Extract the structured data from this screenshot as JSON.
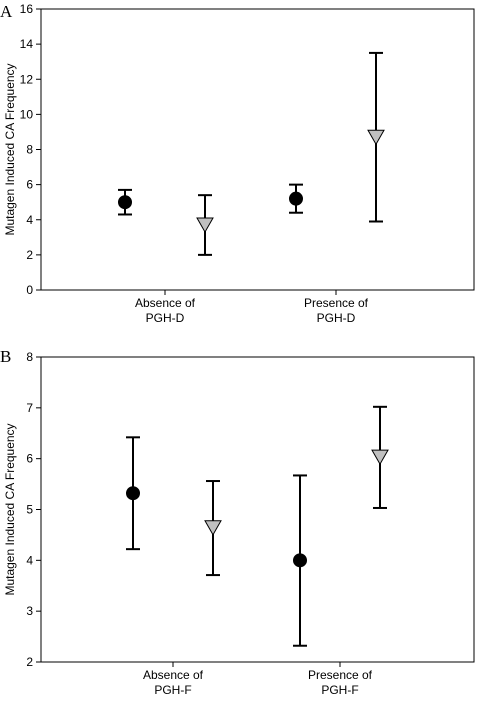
{
  "chart_data": [
    {
      "type": "scatter",
      "panel": "A",
      "ylabel": "Mutagen Induced CA Frequency",
      "ylim": [
        0,
        16
      ],
      "yticks": [
        "0",
        "2",
        "4",
        "6",
        "8",
        "10",
        "12",
        "14",
        "16"
      ],
      "categories": [
        {
          "line1": "Absence of",
          "line2": "PGH-D"
        },
        {
          "line1": "Presence of",
          "line2": "PGH-D"
        }
      ],
      "grid": false,
      "series": [
        {
          "marker": "circle",
          "color": "#000000",
          "points": [
            {
              "category": 0,
              "y": 5.0,
              "lower": 4.3,
              "upper": 5.7
            },
            {
              "category": 1,
              "y": 5.2,
              "lower": 4.4,
              "upper": 6.0
            }
          ]
        },
        {
          "marker": "triangle-down",
          "color": "#c0c0c0",
          "points": [
            {
              "category": 0,
              "y": 3.7,
              "lower": 2.0,
              "upper": 5.4
            },
            {
              "category": 1,
              "y": 8.7,
              "lower": 3.9,
              "upper": 13.5
            }
          ]
        }
      ]
    },
    {
      "type": "scatter",
      "panel": "B",
      "ylabel": "Mutagen Induced CA Frequency",
      "ylim": [
        2,
        8
      ],
      "yticks": [
        "2",
        "3",
        "4",
        "5",
        "6",
        "7",
        "8"
      ],
      "categories": [
        {
          "line1": "Absence of",
          "line2": "PGH-F"
        },
        {
          "line1": "Presence of",
          "line2": "PGH-F"
        }
      ],
      "grid": false,
      "series": [
        {
          "marker": "circle",
          "color": "#000000",
          "points": [
            {
              "category": 0,
              "y": 5.32,
              "lower": 4.22,
              "upper": 6.42
            },
            {
              "category": 1,
              "y": 4.0,
              "lower": 2.32,
              "upper": 5.67
            }
          ]
        },
        {
          "marker": "triangle-down",
          "color": "#c0c0c0",
          "points": [
            {
              "category": 0,
              "y": 4.64,
              "lower": 3.71,
              "upper": 5.56
            },
            {
              "category": 1,
              "y": 6.03,
              "lower": 5.03,
              "upper": 7.02
            }
          ]
        }
      ]
    }
  ]
}
